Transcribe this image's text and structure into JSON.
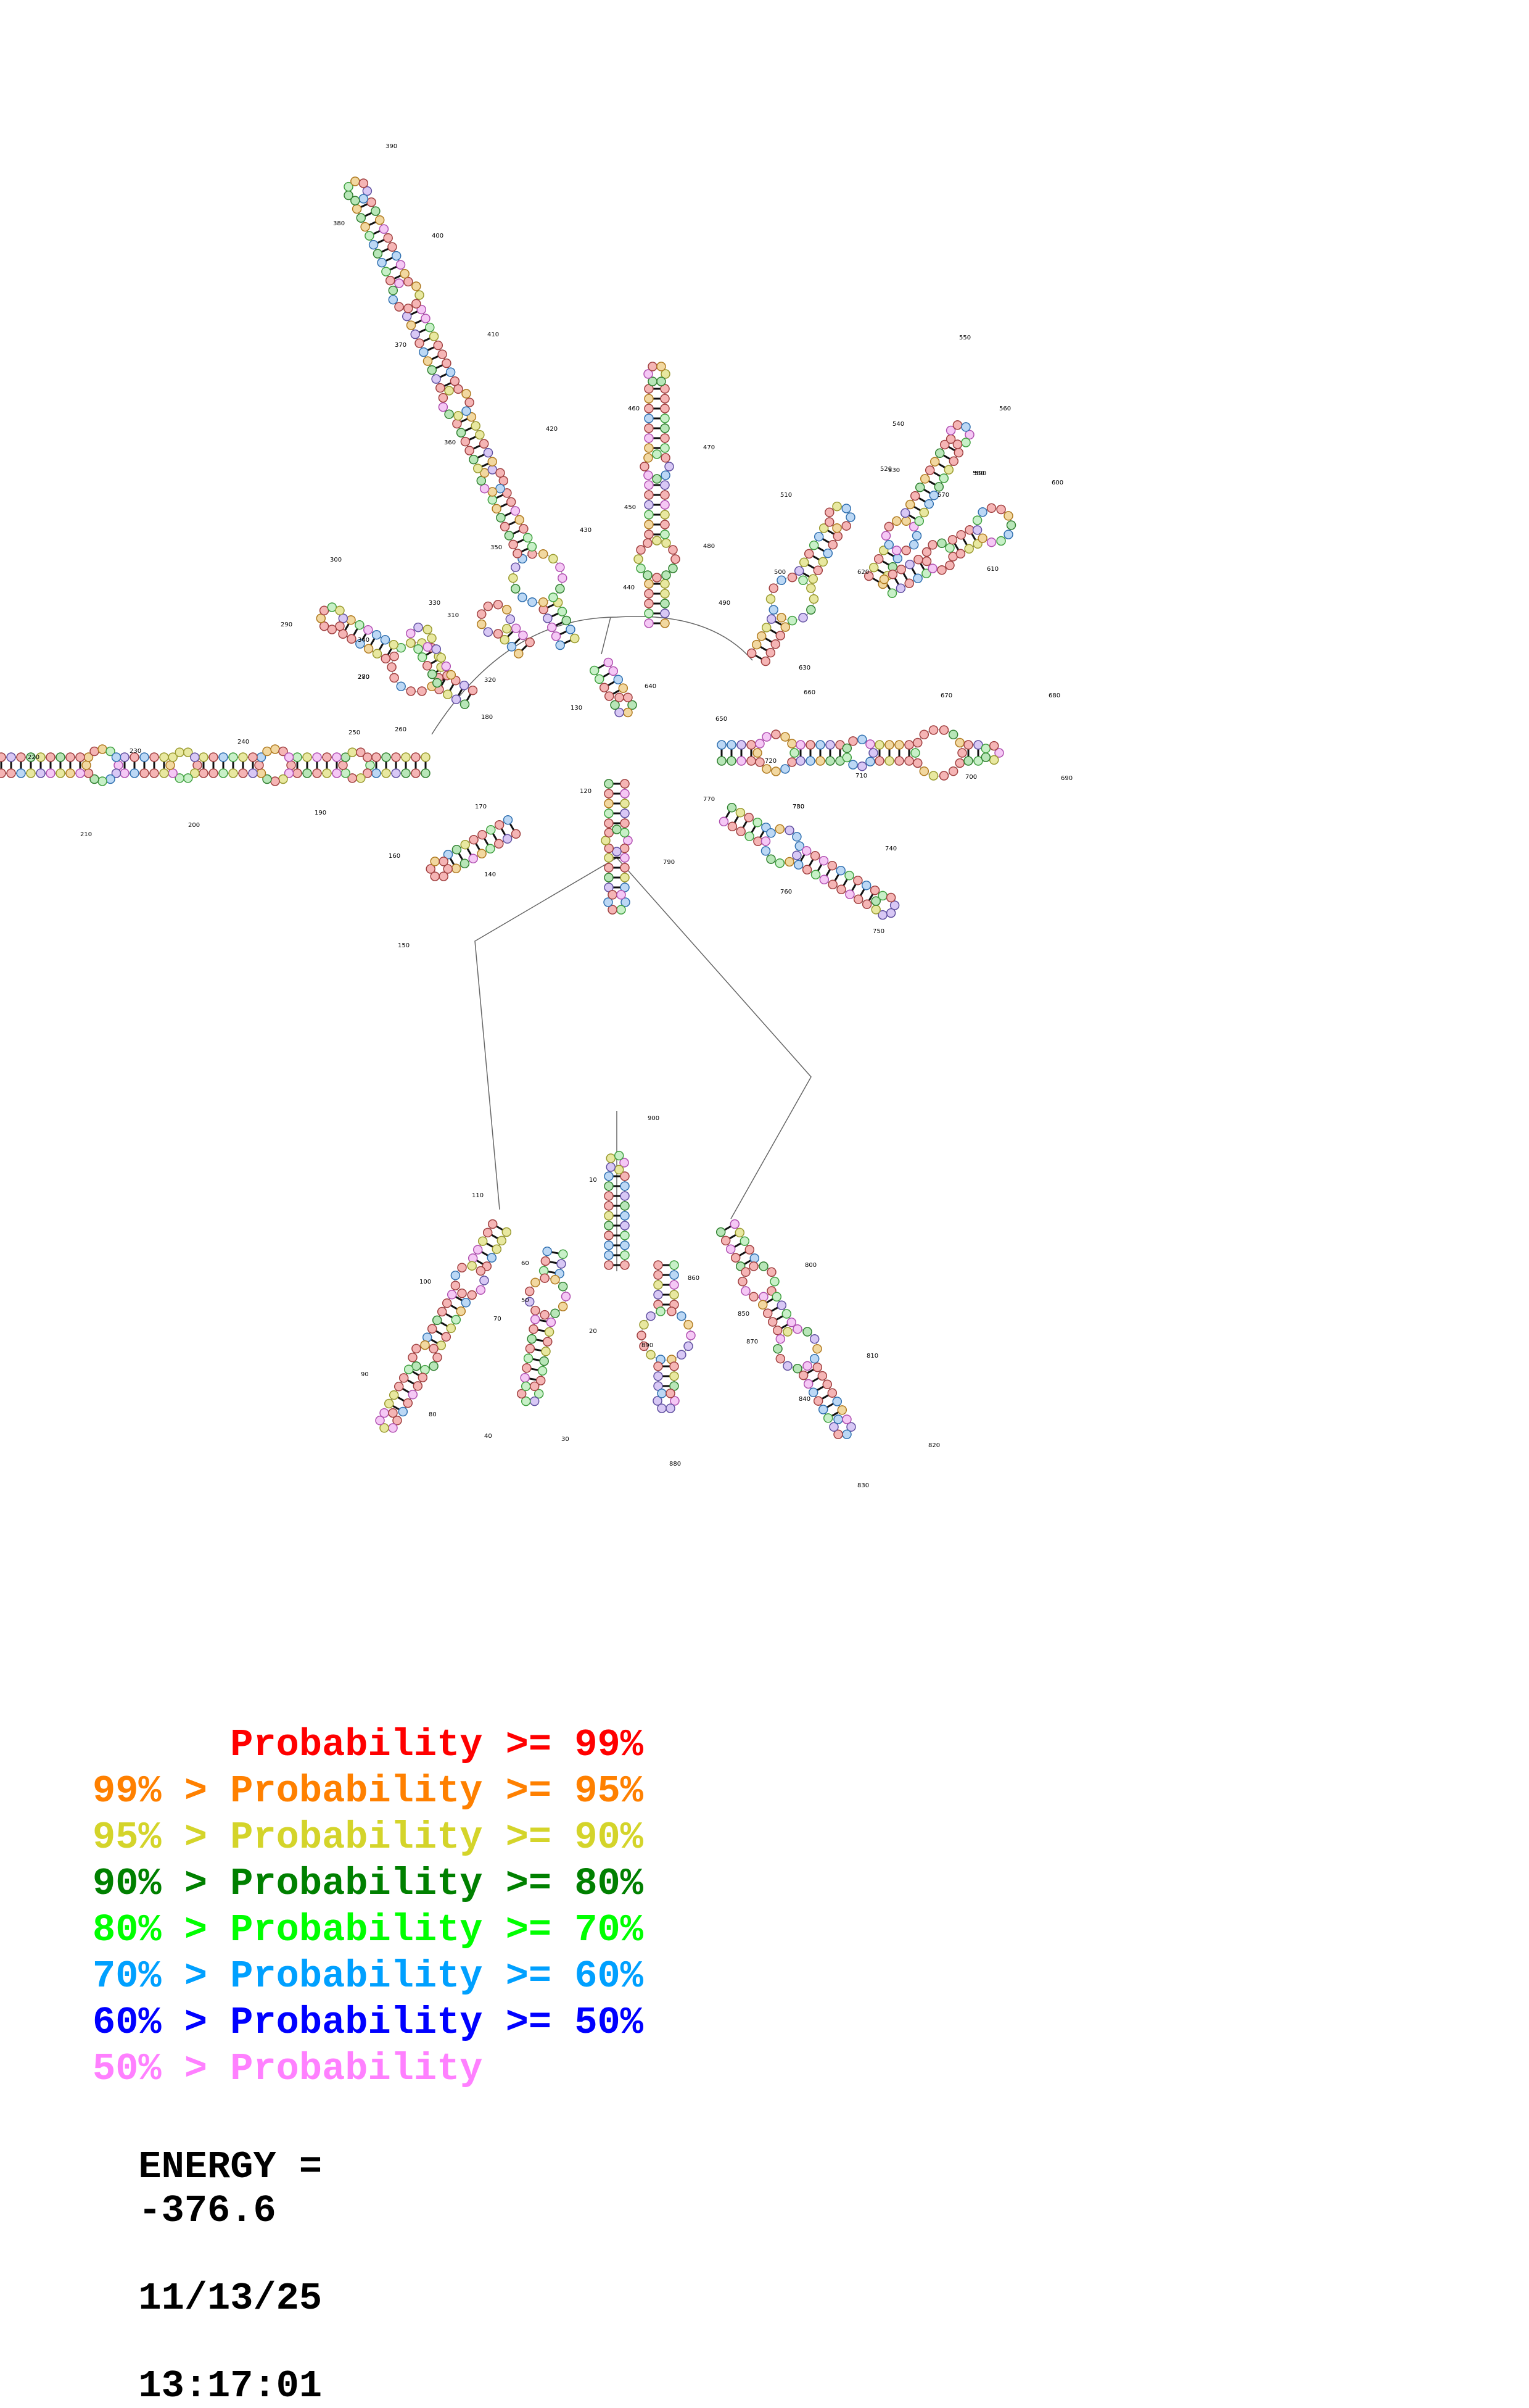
{
  "legend": [
    {
      "prefix": "",
      "label": "Probability >= 99%",
      "color": "#ff0000"
    },
    {
      "prefix": "99% > ",
      "label": "Probability >= 95%",
      "color": "#ff8000"
    },
    {
      "prefix": "95% > ",
      "label": "Probability >= 90%",
      "color": "#d4d42a"
    },
    {
      "prefix": "90% > ",
      "label": "Probability >= 80%",
      "color": "#008000"
    },
    {
      "prefix": "80% > ",
      "label": "Probability >= 70%",
      "color": "#00ff00"
    },
    {
      "prefix": "70% > ",
      "label": "Probability >= 60%",
      "color": "#00a0ff"
    },
    {
      "prefix": "60% > ",
      "label": "Probability >= 50%",
      "color": "#0000ff"
    },
    {
      "prefix": "50% > ",
      "label": "Probability",
      "color": "#ff80ff"
    }
  ],
  "energy": {
    "label": "ENERGY =",
    "value": "-376.6",
    "date": "11/13/25",
    "time": "13:17:01"
  },
  "position_labels": [
    "10",
    "20",
    "30",
    "40",
    "50",
    "60",
    "70",
    "80",
    "90",
    "100",
    "110",
    "120",
    "130",
    "140",
    "150",
    "160",
    "170",
    "180",
    "190",
    "200",
    "210",
    "220",
    "230",
    "240",
    "250",
    "260",
    "270",
    "280",
    "290",
    "300",
    "310",
    "320",
    "330",
    "340",
    "350",
    "360",
    "370",
    "380",
    "390",
    "400",
    "410",
    "420",
    "430",
    "440",
    "450",
    "460",
    "470",
    "480",
    "490",
    "500",
    "510",
    "520",
    "530",
    "540",
    "550",
    "560",
    "570",
    "580",
    "590",
    "600",
    "610",
    "620",
    "630",
    "640",
    "650",
    "660",
    "670",
    "680",
    "690",
    "700",
    "710",
    "720",
    "730",
    "740",
    "750",
    "760",
    "770",
    "780",
    "790",
    "800",
    "810",
    "820",
    "830",
    "840",
    "850",
    "860",
    "870",
    "880",
    "890",
    "900"
  ]
}
